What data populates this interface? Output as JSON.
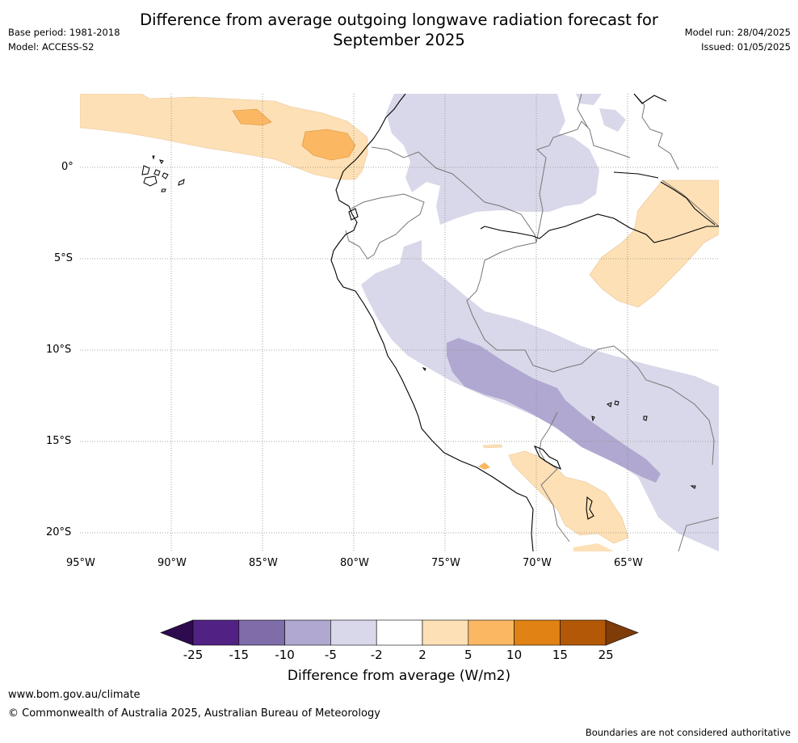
{
  "title_line1": "Difference from average outgoing longwave radiation forecast for",
  "title_line2": "September 2025",
  "base_period": "Base period: 1981-2018",
  "model": "Model: ACCESS-S2",
  "model_run": "Model run: 28/04/2025",
  "issued": "Issued: 01/05/2025",
  "lat_labels": [
    "0°",
    "5°S",
    "10°S",
    "15°S",
    "20°S"
  ],
  "lon_labels": [
    "95°W",
    "90°W",
    "85°W",
    "80°W",
    "75°W",
    "70°W",
    "65°W"
  ],
  "colorbar": {
    "title": "Difference from average (W/m2)",
    "ticks": [
      "-25",
      "-15",
      "-10",
      "-5",
      "-2",
      "2",
      "5",
      "10",
      "15",
      "25"
    ],
    "colors": {
      "below_min": "#2d0b4e",
      "bins": [
        "#512283",
        "#7e6da9",
        "#b0a8d0",
        "#d8d8ea",
        "#ffffff",
        "#fde0b5",
        "#fbb762",
        "#e08214",
        "#b35806"
      ],
      "above_max": "#7f3b08"
    }
  },
  "website": "www.bom.gov.au/climate",
  "copyright": "© Commonwealth of Australia 2025, Australian Bureau of Meteorology",
  "disclaimer": "Boundaries are not considered authoritative"
}
